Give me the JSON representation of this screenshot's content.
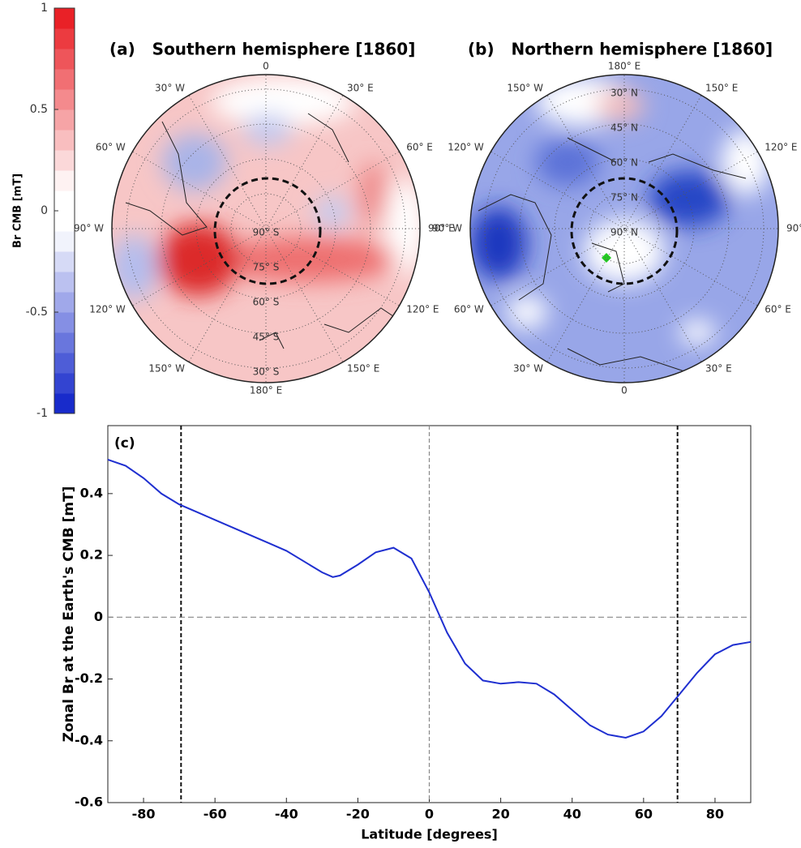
{
  "chart_data": [
    {
      "type": "colorbar",
      "label": "Br CMB [mT]",
      "ylim": [
        -1,
        1
      ],
      "yticks": [
        1,
        0.5,
        0,
        -0.5,
        -1
      ],
      "low_color": "#0a1fc8",
      "high_color": "#e8141a"
    },
    {
      "type": "polar",
      "title": "(a)   Southern hemisphere [1860]",
      "lon_labels": [
        "0",
        "30° E",
        "60° E",
        "90° E",
        "120° E",
        "150° E",
        "180° E",
        "150° W",
        "120° W",
        "90° W",
        "60° W",
        "30° W"
      ],
      "lat_labels": [
        "90° S",
        "75° S",
        "60° S",
        "45° S",
        "30° S"
      ],
      "lat_direction": "down"
    },
    {
      "type": "polar",
      "title": "(b)   Northern hemisphere [1860]",
      "lon_labels": [
        "180° E",
        "150° E",
        "120° E",
        "90° E",
        "60° E",
        "30° E",
        "0",
        "30° W",
        "60° W",
        "90° W",
        "120° W",
        "150° W"
      ],
      "lat_labels": [
        "90° N",
        "75° N",
        "60° N",
        "45° N",
        "30° N"
      ],
      "lat_direction": "up"
    },
    {
      "type": "line",
      "panel_label": "(c)",
      "xlabel": "Latitude [degrees]",
      "ylabel": "Zonal Br at the Earth's CMB [mT]",
      "x": [
        -90,
        -85,
        -80,
        -75,
        -70,
        -65,
        -60,
        -55,
        -50,
        -45,
        -40,
        -35,
        -30,
        -27,
        -25,
        -20,
        -15,
        -10,
        -5,
        0,
        5,
        10,
        15,
        20,
        25,
        30,
        35,
        40,
        45,
        50,
        55,
        60,
        65,
        70,
        75,
        80,
        85,
        90
      ],
      "series": [
        {
          "color": "#1f2fd0",
          "values": [
            0.51,
            0.49,
            0.45,
            0.4,
            0.365,
            0.34,
            0.315,
            0.29,
            0.265,
            0.24,
            0.215,
            0.18,
            0.145,
            0.13,
            0.135,
            0.17,
            0.21,
            0.225,
            0.19,
            0.08,
            -0.05,
            -0.15,
            -0.205,
            -0.215,
            -0.21,
            -0.215,
            -0.25,
            -0.3,
            -0.35,
            -0.38,
            -0.39,
            -0.37,
            -0.32,
            -0.25,
            -0.18,
            -0.12,
            -0.09,
            -0.08
          ]
        }
      ],
      "xlim": [
        -90,
        90
      ],
      "xticks": [
        -80,
        -60,
        -40,
        -20,
        0,
        20,
        40,
        60,
        80
      ],
      "ylim": [
        -0.6,
        0.62
      ],
      "yticks": [
        -0.6,
        -0.4,
        -0.2,
        0,
        0.2,
        0.4
      ],
      "vlines": [
        -69.5,
        0,
        69.5
      ],
      "hlines": [
        0
      ]
    }
  ]
}
